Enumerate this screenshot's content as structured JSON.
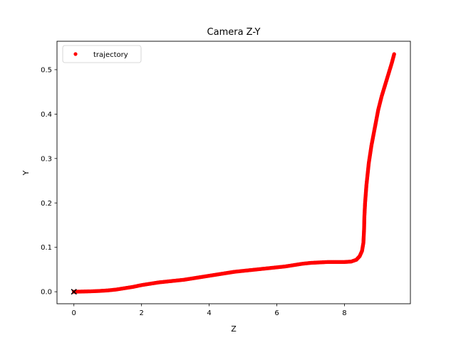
{
  "chart_data": {
    "type": "scatter",
    "title": "Camera Z-Y",
    "xlabel": "Z",
    "ylabel": "Y",
    "xlim": [
      -0.5,
      9.95
    ],
    "ylim": [
      -0.027,
      0.564
    ],
    "xticks": [
      0,
      2,
      4,
      6,
      8
    ],
    "xtick_labels": [
      "0",
      "2",
      "4",
      "6",
      "8"
    ],
    "yticks": [
      0.0,
      0.1,
      0.2,
      0.3,
      0.4,
      0.5
    ],
    "ytick_labels": [
      "0.0",
      "0.1",
      "0.2",
      "0.3",
      "0.4",
      "0.5"
    ],
    "grid": false,
    "legend_position": "upper-left",
    "series": [
      {
        "name": "trajectory",
        "color": "#ff0000",
        "marker": "circle",
        "points": [
          [
            0.0,
            0.0
          ],
          [
            0.25,
            0.0005
          ],
          [
            0.5,
            0.001
          ],
          [
            0.75,
            0.0018
          ],
          [
            1.0,
            0.003
          ],
          [
            1.25,
            0.005
          ],
          [
            1.5,
            0.008
          ],
          [
            1.75,
            0.011
          ],
          [
            2.0,
            0.015
          ],
          [
            2.25,
            0.018
          ],
          [
            2.5,
            0.021
          ],
          [
            2.75,
            0.023
          ],
          [
            3.0,
            0.025
          ],
          [
            3.25,
            0.027
          ],
          [
            3.5,
            0.03
          ],
          [
            3.75,
            0.033
          ],
          [
            4.0,
            0.036
          ],
          [
            4.25,
            0.039
          ],
          [
            4.5,
            0.042
          ],
          [
            4.75,
            0.045
          ],
          [
            5.0,
            0.047
          ],
          [
            5.25,
            0.049
          ],
          [
            5.5,
            0.051
          ],
          [
            5.75,
            0.053
          ],
          [
            6.0,
            0.055
          ],
          [
            6.25,
            0.057
          ],
          [
            6.5,
            0.06
          ],
          [
            6.75,
            0.063
          ],
          [
            7.0,
            0.065
          ],
          [
            7.25,
            0.066
          ],
          [
            7.5,
            0.067
          ],
          [
            7.75,
            0.067
          ],
          [
            8.0,
            0.067
          ],
          [
            8.2,
            0.068
          ],
          [
            8.35,
            0.072
          ],
          [
            8.45,
            0.08
          ],
          [
            8.52,
            0.092
          ],
          [
            8.56,
            0.11
          ],
          [
            8.58,
            0.14
          ],
          [
            8.59,
            0.17
          ],
          [
            8.61,
            0.2
          ],
          [
            8.65,
            0.24
          ],
          [
            8.72,
            0.29
          ],
          [
            8.8,
            0.33
          ],
          [
            8.9,
            0.37
          ],
          [
            9.0,
            0.41
          ],
          [
            9.1,
            0.44
          ],
          [
            9.2,
            0.465
          ],
          [
            9.3,
            0.49
          ],
          [
            9.4,
            0.515
          ],
          [
            9.47,
            0.535
          ]
        ]
      },
      {
        "color": "#000000",
        "marker": "x",
        "points": [
          [
            0.0,
            0.0
          ]
        ]
      }
    ]
  }
}
